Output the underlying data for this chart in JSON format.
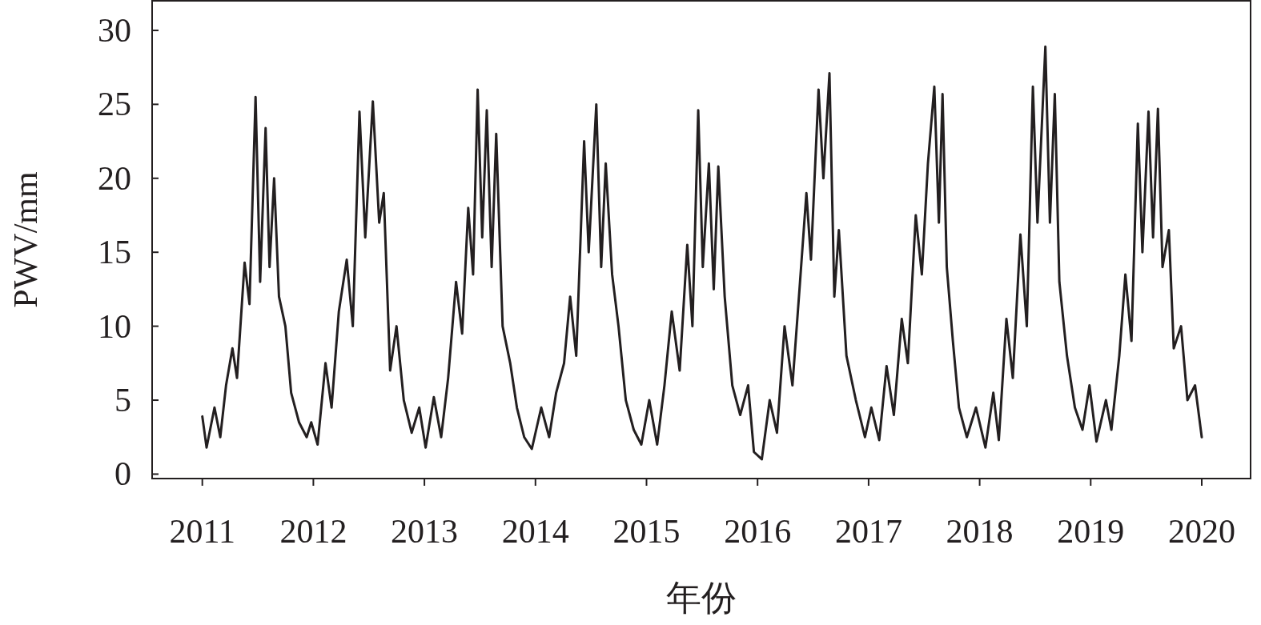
{
  "chart_data": {
    "type": "line",
    "xlabel": "年份",
    "ylabel": "PWV/mm",
    "color": "#231f20",
    "xlim": [
      "2010-07-20",
      "2020-06-10"
    ],
    "ylim": [
      -0.3,
      32
    ],
    "xticks": [
      {
        "value": "2011",
        "label": "2011"
      },
      {
        "value": "2012",
        "label": "2012"
      },
      {
        "value": "2013",
        "label": "2013"
      },
      {
        "value": "2014",
        "label": "2014"
      },
      {
        "value": "2015",
        "label": "2015"
      },
      {
        "value": "2016",
        "label": "2016"
      },
      {
        "value": "2017",
        "label": "2017"
      },
      {
        "value": "2018",
        "label": "2018"
      },
      {
        "value": "2019",
        "label": "2019"
      },
      {
        "value": "2020",
        "label": "2020"
      }
    ],
    "yticks": [
      0,
      5,
      10,
      15,
      20,
      25,
      30
    ],
    "x": [
      "2011-01-01",
      "2011-01-15",
      "2011-02-10",
      "2011-03-01",
      "2011-03-20",
      "2011-04-10",
      "2011-04-25",
      "2011-05-20",
      "2011-06-05",
      "2011-06-25",
      "2011-07-10",
      "2011-07-28",
      "2011-08-10",
      "2011-08-25",
      "2011-09-10",
      "2011-10-01",
      "2011-10-20",
      "2011-11-15",
      "2011-12-10",
      "2011-12-25",
      "2012-01-15",
      "2012-02-10",
      "2012-03-01",
      "2012-03-25",
      "2012-04-20",
      "2012-05-10",
      "2012-06-01",
      "2012-06-20",
      "2012-07-15",
      "2012-08-05",
      "2012-08-20",
      "2012-09-10",
      "2012-10-01",
      "2012-10-25",
      "2012-11-20",
      "2012-12-15",
      "2013-01-05",
      "2013-02-01",
      "2013-02-25",
      "2013-03-20",
      "2013-04-15",
      "2013-05-05",
      "2013-05-25",
      "2013-06-10",
      "2013-06-25",
      "2013-07-10",
      "2013-07-25",
      "2013-08-10",
      "2013-08-25",
      "2013-09-15",
      "2013-10-10",
      "2013-11-01",
      "2013-11-25",
      "2013-12-20",
      "2014-01-20",
      "2014-02-15",
      "2014-03-10",
      "2014-04-05",
      "2014-04-25",
      "2014-05-15",
      "2014-06-10",
      "2014-06-25",
      "2014-07-20",
      "2014-08-05",
      "2014-08-20",
      "2014-09-10",
      "2014-10-01",
      "2014-10-25",
      "2014-11-20",
      "2014-12-15",
      "2015-01-10",
      "2015-02-05",
      "2015-03-01",
      "2015-03-25",
      "2015-04-20",
      "2015-05-15",
      "2015-06-01",
      "2015-06-20",
      "2015-07-05",
      "2015-07-25",
      "2015-08-10",
      "2015-08-25",
      "2015-09-15",
      "2015-10-10",
      "2015-11-05",
      "2015-12-01",
      "2015-12-20",
      "2016-01-15",
      "2016-02-10",
      "2016-03-05",
      "2016-03-30",
      "2016-04-25",
      "2016-05-20",
      "2016-06-10",
      "2016-06-25",
      "2016-07-20",
      "2016-08-05",
      "2016-08-25",
      "2016-09-10",
      "2016-09-25",
      "2016-10-20",
      "2016-11-20",
      "2016-12-20",
      "2017-01-10",
      "2017-02-05",
      "2017-03-01",
      "2017-03-25",
      "2017-04-20",
      "2017-05-10",
      "2017-06-05",
      "2017-06-25",
      "2017-07-15",
      "2017-08-05",
      "2017-08-20",
      "2017-09-01",
      "2017-09-15",
      "2017-10-05",
      "2017-10-25",
      "2017-11-20",
      "2017-12-20",
      "2018-01-20",
      "2018-02-15",
      "2018-03-05",
      "2018-03-30",
      "2018-04-20",
      "2018-05-15",
      "2018-06-05",
      "2018-06-25",
      "2018-07-10",
      "2018-08-05",
      "2018-08-20",
      "2018-09-05",
      "2018-09-20",
      "2018-10-15",
      "2018-11-10",
      "2018-12-05",
      "2018-12-28",
      "2019-01-20",
      "2019-02-20",
      "2019-03-10",
      "2019-04-05",
      "2019-04-25",
      "2019-05-15",
      "2019-06-05",
      "2019-06-20",
      "2019-07-10",
      "2019-07-25",
      "2019-08-10",
      "2019-08-25",
      "2019-09-15",
      "2019-10-01",
      "2019-10-25",
      "2019-11-15",
      "2019-12-10",
      "2020-01-01"
    ],
    "values": [
      3.9,
      1.8,
      4.5,
      2.5,
      6,
      8.5,
      6.5,
      14.3,
      11.5,
      25.5,
      13,
      23.4,
      14,
      20,
      12,
      10,
      5.5,
      3.5,
      2.5,
      3.5,
      2,
      7.5,
      4.5,
      11,
      14.5,
      10,
      24.5,
      16,
      25.2,
      17,
      19,
      7,
      10,
      5,
      2.8,
      4.5,
      1.8,
      5.2,
      2.5,
      6.5,
      13,
      9.5,
      18,
      13.5,
      26,
      16,
      24.6,
      14,
      23,
      10,
      7.5,
      4.5,
      2.5,
      1.7,
      4.5,
      2.5,
      5.5,
      7.5,
      12,
      8,
      22.5,
      15,
      25,
      14,
      21,
      13.5,
      10,
      5,
      3,
      2,
      5,
      2,
      6,
      11,
      7,
      15.5,
      10,
      24.6,
      14,
      21,
      12.5,
      20.8,
      12,
      6,
      4,
      6,
      1.5,
      1,
      5,
      2.8,
      10,
      6,
      13,
      19,
      14.5,
      26,
      20,
      27.1,
      12,
      16.5,
      8,
      5,
      2.5,
      4.5,
      2.3,
      7.3,
      4,
      10.5,
      7.5,
      17.5,
      13.5,
      21,
      26.2,
      17,
      25.7,
      14,
      9,
      4.5,
      2.5,
      4.5,
      1.8,
      5.5,
      2.3,
      10.5,
      6.5,
      16.2,
      10,
      26.2,
      17,
      28.9,
      17,
      25.7,
      13,
      8,
      4.5,
      3,
      6,
      2.2,
      5,
      3,
      8,
      13.5,
      9,
      23.7,
      15,
      24.5,
      16,
      24.7,
      14,
      16.5,
      8.5,
      10,
      5,
      6,
      2.5
    ]
  }
}
